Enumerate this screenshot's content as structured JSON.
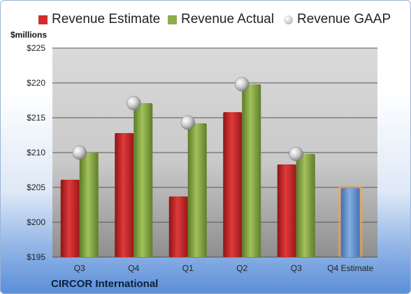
{
  "chart_data": {
    "type": "bar",
    "title": "",
    "ylabel": "$millions",
    "xlabel": "",
    "ylim": [
      195,
      225
    ],
    "yticks": [
      195,
      200,
      205,
      210,
      215,
      220,
      225
    ],
    "ytick_labels": [
      "$195",
      "$200",
      "$205",
      "$210",
      "$215",
      "$220",
      "$225"
    ],
    "categories": [
      "Q3",
      "Q4",
      "Q1",
      "Q2",
      "Q3",
      "Q4 Estimate"
    ],
    "series": [
      {
        "name": "Revenue Estimate",
        "marker": "bar",
        "color": "#d22b2b",
        "values": [
          206.1,
          212.8,
          203.7,
          215.8,
          208.3,
          null
        ]
      },
      {
        "name": "Revenue Actual",
        "marker": "bar",
        "color": "#8dae4a",
        "values": [
          210.0,
          217.1,
          214.2,
          219.8,
          209.8,
          null
        ]
      },
      {
        "name": "Revenue GAAP",
        "marker": "sphere",
        "color": "#c8c8c8",
        "values": [
          210.0,
          217.1,
          214.3,
          219.8,
          209.8,
          null
        ]
      },
      {
        "name": "",
        "marker": "bar",
        "color": "#6f9bd6",
        "values": [
          null,
          null,
          null,
          null,
          null,
          204.9
        ]
      }
    ],
    "grid": true,
    "legend_position": "top"
  },
  "company": "CIRCOR International",
  "legend_labels": [
    "Revenue Estimate",
    "Revenue Actual",
    "Revenue GAAP"
  ]
}
